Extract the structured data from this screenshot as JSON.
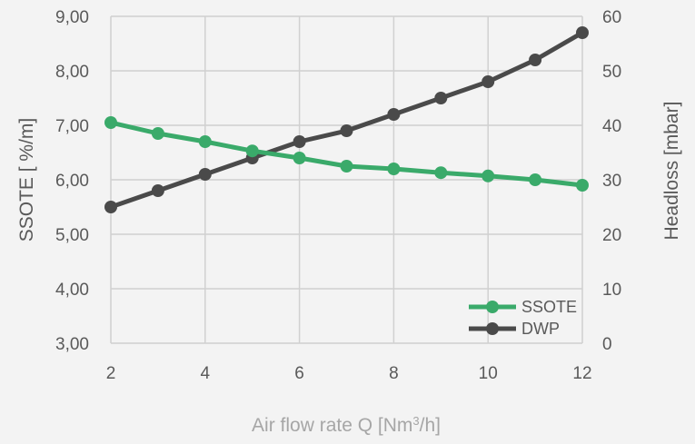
{
  "chart_data": {
    "type": "line",
    "x": [
      2,
      3,
      4,
      5,
      6,
      7,
      8,
      9,
      10,
      11,
      12
    ],
    "xlabel": "Air flow rate Q [Nm³/h]",
    "ylabel": "SSOTE [ %/m]",
    "y2label": "Headloss [mbar]",
    "xlim": [
      2,
      12
    ],
    "ylim": [
      3,
      9
    ],
    "y2lim": [
      0,
      60
    ],
    "x_ticks": [
      "2",
      "4",
      "6",
      "8",
      "10",
      "12"
    ],
    "y_ticks": [
      "3,00",
      "4,00",
      "5,00",
      "6,00",
      "7,00",
      "8,00",
      "9,00"
    ],
    "y2_ticks": [
      "0",
      "10",
      "20",
      "30",
      "40",
      "50",
      "60"
    ],
    "grid": true,
    "legend_position": "bottom-right",
    "series": [
      {
        "name": "SSOTE",
        "axis": "left",
        "color": "#3aaa6a",
        "values": [
          7.05,
          6.85,
          6.7,
          6.53,
          6.4,
          6.25,
          6.2,
          6.13,
          6.07,
          6.0,
          5.9
        ]
      },
      {
        "name": "DWP",
        "axis": "right",
        "color": "#4a4a4a",
        "values": [
          25,
          28,
          31,
          34,
          37,
          39,
          42,
          45,
          48,
          52,
          57
        ]
      }
    ]
  }
}
